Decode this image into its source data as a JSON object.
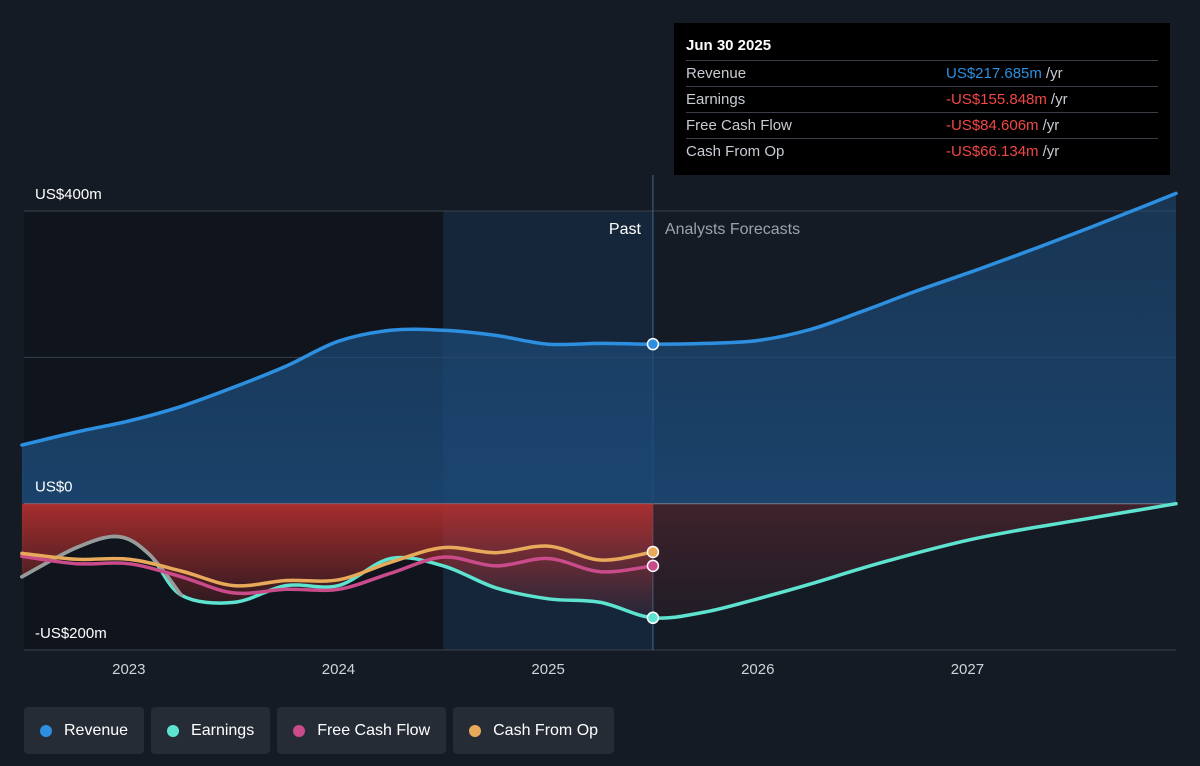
{
  "tooltip": {
    "date": "Jun 30 2025",
    "rows": [
      {
        "label": "Revenue",
        "value": "US$217.685m",
        "unit": "/yr",
        "color": "#2d8fe0"
      },
      {
        "label": "Earnings",
        "value": "-US$155.848m",
        "unit": "/yr",
        "color": "#f04747"
      },
      {
        "label": "Free Cash Flow",
        "value": "-US$84.606m",
        "unit": "/yr",
        "color": "#f04747"
      },
      {
        "label": "Cash From Op",
        "value": "-US$66.134m",
        "unit": "/yr",
        "color": "#f04747"
      }
    ]
  },
  "legend": [
    {
      "label": "Revenue",
      "color": "#2d8fe0"
    },
    {
      "label": "Earnings",
      "color": "#5de3cf"
    },
    {
      "label": "Free Cash Flow",
      "color": "#c94b8a"
    },
    {
      "label": "Cash From Op",
      "color": "#e8a95b"
    }
  ],
  "chart_data": {
    "type": "line",
    "y_tick_labels": [
      "US$400m",
      "US$0",
      "-US$200m"
    ],
    "ylim": [
      -200,
      400
    ],
    "x_tick_labels": [
      "2023",
      "2024",
      "2025",
      "2026",
      "2027"
    ],
    "xlim": [
      2022.5,
      2027.995
    ],
    "past_label": "Past",
    "forecast_label": "Analysts Forecasts",
    "divider_x": 2025.5,
    "highlight_x_range": [
      2024.5,
      2025.5
    ],
    "colors": {
      "revenue": "#2d8fe0",
      "earnings": "#5de3cf",
      "fcf": "#c94b8a",
      "cfo": "#e8a95b",
      "earnings_gray": "#9a9a9a"
    },
    "series": [
      {
        "name": "Revenue",
        "key": "revenue",
        "points": [
          [
            2022.49,
            80
          ],
          [
            2022.75,
            98
          ],
          [
            2023.0,
            113
          ],
          [
            2023.25,
            133
          ],
          [
            2023.5,
            159
          ],
          [
            2023.75,
            188
          ],
          [
            2024.0,
            222
          ],
          [
            2024.25,
            237
          ],
          [
            2024.5,
            237
          ],
          [
            2024.75,
            230
          ],
          [
            2025.0,
            218
          ],
          [
            2025.25,
            219
          ],
          [
            2025.5,
            218
          ],
          [
            2025.75,
            219
          ],
          [
            2026.0,
            223
          ],
          [
            2026.25,
            238
          ],
          [
            2026.5,
            263
          ],
          [
            2026.75,
            290
          ],
          [
            2027.0,
            315
          ],
          [
            2027.25,
            341
          ],
          [
            2027.5,
            368
          ],
          [
            2027.75,
            396
          ],
          [
            2027.995,
            424
          ]
        ]
      },
      {
        "name": "Earnings",
        "key": "earnings",
        "points": [
          [
            2022.49,
            -100
          ],
          [
            2022.75,
            -60
          ],
          [
            2022.95,
            -45
          ],
          [
            2023.1,
            -70
          ],
          [
            2023.25,
            -125
          ],
          [
            2023.5,
            -135
          ],
          [
            2023.75,
            -112
          ],
          [
            2024.0,
            -112
          ],
          [
            2024.25,
            -75
          ],
          [
            2024.5,
            -85
          ],
          [
            2024.75,
            -115
          ],
          [
            2025.0,
            -130
          ],
          [
            2025.25,
            -135
          ],
          [
            2025.5,
            -156
          ],
          [
            2025.75,
            -148
          ],
          [
            2026.0,
            -130
          ],
          [
            2026.25,
            -110
          ],
          [
            2026.5,
            -88
          ],
          [
            2026.75,
            -68
          ],
          [
            2027.0,
            -50
          ],
          [
            2027.25,
            -36
          ],
          [
            2027.5,
            -24
          ],
          [
            2027.75,
            -12
          ],
          [
            2027.995,
            0
          ]
        ]
      },
      {
        "name": "Free Cash Flow",
        "key": "fcf",
        "points": [
          [
            2022.49,
            -72
          ],
          [
            2022.75,
            -82
          ],
          [
            2023.0,
            -82
          ],
          [
            2023.25,
            -100
          ],
          [
            2023.5,
            -122
          ],
          [
            2023.75,
            -117
          ],
          [
            2024.0,
            -117
          ],
          [
            2024.25,
            -95
          ],
          [
            2024.5,
            -73
          ],
          [
            2024.75,
            -85
          ],
          [
            2025.0,
            -75
          ],
          [
            2025.25,
            -93
          ],
          [
            2025.5,
            -85
          ]
        ]
      },
      {
        "name": "Cash From Op",
        "key": "cfo",
        "points": [
          [
            2022.49,
            -68
          ],
          [
            2022.75,
            -76
          ],
          [
            2023.0,
            -76
          ],
          [
            2023.25,
            -92
          ],
          [
            2023.5,
            -112
          ],
          [
            2023.75,
            -105
          ],
          [
            2024.0,
            -104
          ],
          [
            2024.25,
            -80
          ],
          [
            2024.5,
            -60
          ],
          [
            2024.75,
            -67
          ],
          [
            2025.0,
            -58
          ],
          [
            2025.25,
            -77
          ],
          [
            2025.5,
            -66
          ]
        ]
      }
    ]
  }
}
